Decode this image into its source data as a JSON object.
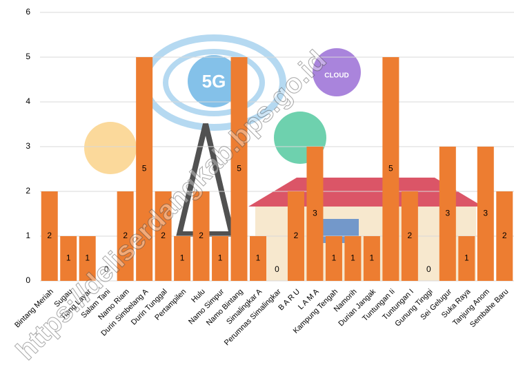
{
  "chart_data": {
    "type": "bar",
    "categories": [
      "Bintang Meriah",
      "Sugau",
      "Tiang Layar",
      "Salam Tani",
      "Namo Riam",
      "Durin Simbelang A",
      "Durin Tunggal",
      "Pertampilen",
      "Hulu",
      "Namo Simpur",
      "Namo Bintang",
      "Simalingkar A",
      "Perumnas Simalingkar",
      "B A R U",
      "L A M A",
      "Kampung Tengah",
      "Namorih",
      "Durian Jangak",
      "Tuntungan Ii",
      "Tuntungan I",
      "Gunung Tinggi",
      "Sei Gelugur",
      "Suka Raya",
      "Tanjung Anom",
      "Sembahe Baru"
    ],
    "values": [
      2,
      1,
      1,
      0,
      2,
      5,
      2,
      1,
      2,
      1,
      5,
      1,
      0,
      2,
      3,
      1,
      1,
      1,
      5,
      2,
      0,
      3,
      1,
      3,
      2
    ],
    "color": "#ed7d31",
    "ylim": [
      0,
      6
    ],
    "yticks": [
      0,
      1,
      2,
      3,
      4,
      5,
      6
    ],
    "grid": true,
    "annotations": [
      "5G",
      "CLOUD"
    ],
    "watermark": "https://deliserdangkab.bps.go.id"
  }
}
